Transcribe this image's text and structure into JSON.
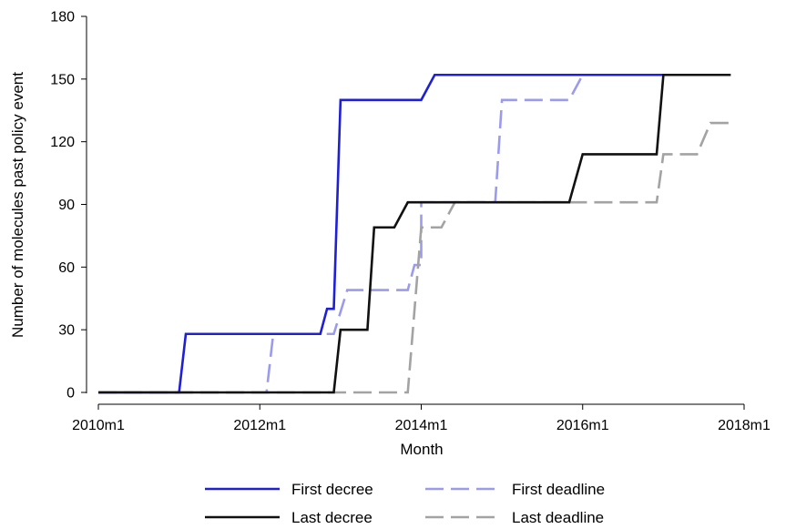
{
  "chart_data": {
    "type": "line",
    "xlabel": "Month",
    "ylabel": "Number of molecules past policy event",
    "x_range": [
      "2010m1",
      "2018m1"
    ],
    "x_ticks": [
      "2010m1",
      "2012m1",
      "2014m1",
      "2016m1",
      "2018m1"
    ],
    "y_range": [
      0,
      180
    ],
    "y_ticks": [
      0,
      30,
      60,
      90,
      120,
      150,
      180
    ],
    "grid": false,
    "legend_position": "bottom",
    "series": [
      {
        "name": "First decree",
        "color": "#1f1fd6",
        "dash": "solid",
        "points": [
          [
            "2010m1",
            0
          ],
          [
            "2011m1",
            0
          ],
          [
            "2011m2",
            28
          ],
          [
            "2012m10",
            28
          ],
          [
            "2012m11",
            40
          ],
          [
            "2012m12",
            40
          ],
          [
            "2013m1",
            140
          ],
          [
            "2014m1",
            140
          ],
          [
            "2014m3",
            152
          ],
          [
            "2017m11",
            152
          ]
        ]
      },
      {
        "name": "First deadline",
        "color": "#9b9bee",
        "dash": "dashed",
        "points": [
          [
            "2010m1",
            0
          ],
          [
            "2012m2",
            0
          ],
          [
            "2012m3",
            28
          ],
          [
            "2012m12",
            28
          ],
          [
            "2013m2",
            49
          ],
          [
            "2013m11",
            49
          ],
          [
            "2013m12",
            61
          ],
          [
            "2014m1",
            61
          ],
          [
            "2014m1",
            91
          ],
          [
            "2014m12",
            91
          ],
          [
            "2015m1",
            140
          ],
          [
            "2015m11",
            140
          ],
          [
            "2016m1",
            152
          ],
          [
            "2017m11",
            152
          ]
        ]
      },
      {
        "name": "Last decree",
        "color": "#111111",
        "dash": "solid",
        "points": [
          [
            "2010m1",
            0
          ],
          [
            "2012m12",
            0
          ],
          [
            "2013m1",
            30
          ],
          [
            "2013m5",
            30
          ],
          [
            "2013m6",
            79
          ],
          [
            "2013m9",
            79
          ],
          [
            "2013m11",
            91
          ],
          [
            "2015m11",
            91
          ],
          [
            "2016m1",
            114
          ],
          [
            "2016m12",
            114
          ],
          [
            "2017m1",
            152
          ],
          [
            "2017m11",
            152
          ]
        ]
      },
      {
        "name": "Last deadline",
        "color": "#a3a3a3",
        "dash": "dashed",
        "points": [
          [
            "2010m1",
            0
          ],
          [
            "2013m11",
            0
          ],
          [
            "2014m1",
            79
          ],
          [
            "2014m4",
            79
          ],
          [
            "2014m6",
            91
          ],
          [
            "2016m12",
            91
          ],
          [
            "2017m1",
            114
          ],
          [
            "2017m6",
            114
          ],
          [
            "2017m8",
            129
          ],
          [
            "2017m11",
            129
          ]
        ]
      }
    ]
  }
}
